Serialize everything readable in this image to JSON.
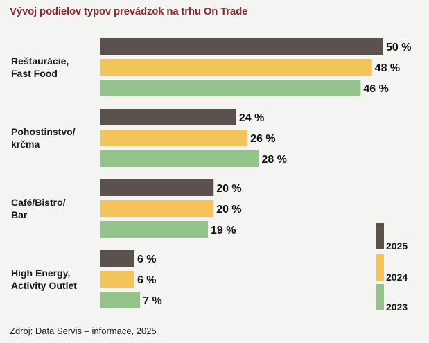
{
  "title": "Vývoj podielov typov prevádzok na trhu On Trade",
  "source": "Zdroj: Data Servis – informace, 2025",
  "colors": {
    "2025": "#5b524e",
    "2024": "#f2c45a",
    "2023": "#94c48c"
  },
  "chart_data": {
    "type": "bar",
    "orientation": "horizontal",
    "title": "Vývoj podielov typov prevádzok na trhu On Trade",
    "categories": [
      [
        "Reštaurácie,",
        "Fast Food"
      ],
      [
        "Pohostinstvo/",
        "krčma"
      ],
      [
        "Café/Bistro/",
        "Bar"
      ],
      [
        "High Energy,",
        "Activity Outlet"
      ]
    ],
    "series": [
      {
        "name": "2025",
        "values": [
          50,
          24,
          20,
          6
        ]
      },
      {
        "name": "2024",
        "values": [
          48,
          26,
          20,
          6
        ]
      },
      {
        "name": "2023",
        "values": [
          46,
          28,
          19,
          7
        ]
      }
    ],
    "unit": "%",
    "xlim": [
      0,
      50
    ],
    "legend_position": "bottom-right",
    "grid": false
  }
}
